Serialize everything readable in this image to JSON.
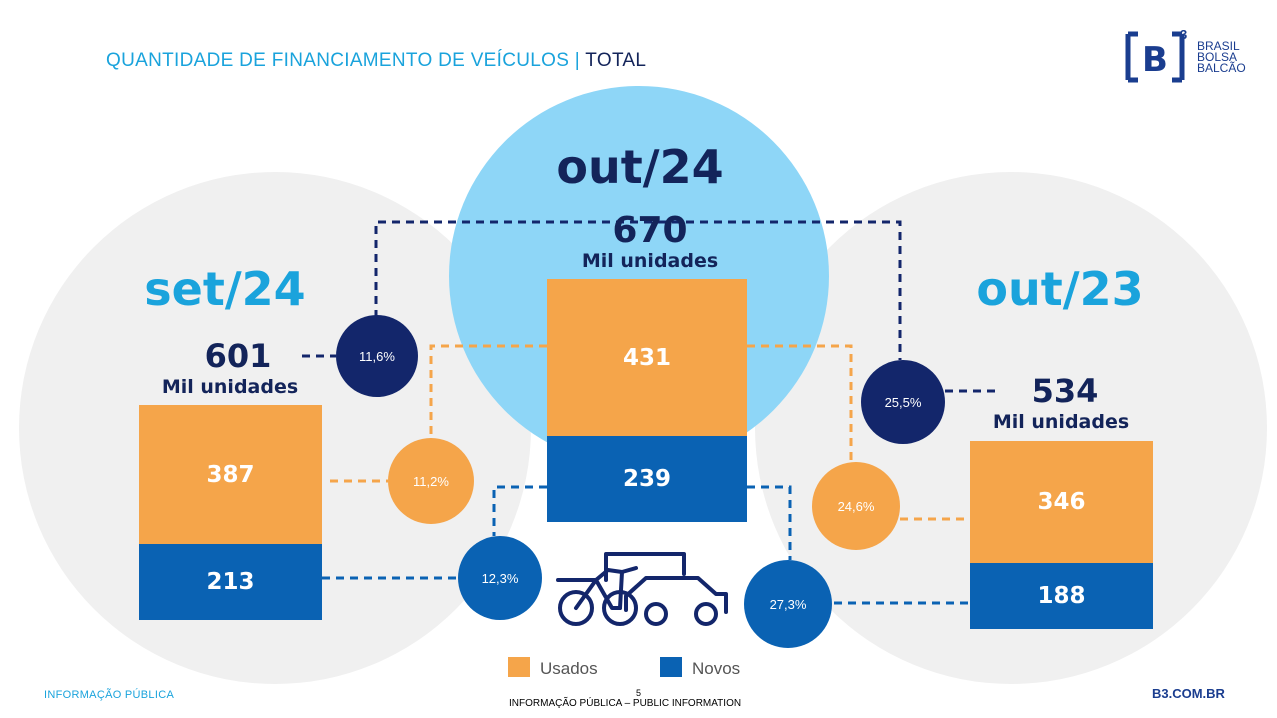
{
  "header": {
    "title_main": "QUANTIDADE DE FINANCIAMENTO DE VEÍCULOS",
    "title_sep": "|",
    "title_total": "TOTAL"
  },
  "logo": {
    "mark": "[B]",
    "sup": "3",
    "line1": "BRASIL",
    "line2": "BOLSA",
    "line3": "BALCÃO"
  },
  "left": {
    "period": "set/24",
    "total": "601",
    "unit": "Mil unidades",
    "usados": "387",
    "novos": "213"
  },
  "center": {
    "period": "out/24",
    "total": "670",
    "unit": "Mil unidades",
    "usados": "431",
    "novos": "239"
  },
  "right": {
    "period": "out/23",
    "total": "534",
    "unit": "Mil unidades",
    "usados": "346",
    "novos": "188"
  },
  "variations": {
    "mom_total": "11,6%",
    "mom_usados": "11,2%",
    "mom_novos": "12,3%",
    "yoy_total": "25,5%",
    "yoy_usados": "24,6%",
    "yoy_novos": "27,3%"
  },
  "legend": {
    "usados": "Usados",
    "novos": "Novos"
  },
  "colors": {
    "usados": "#f5a54a",
    "novos": "#0a62b3",
    "dark": "#13266b",
    "light_blue": "#8ed6f7",
    "accent": "#1aa3dc"
  },
  "icons": [
    "vehicles-icon"
  ],
  "footer": {
    "left": "INFORMAÇÃO PÚBLICA",
    "page": "5",
    "center": "INFORMAÇÃO PÚBLICA – PUBLIC INFORMATION",
    "right": "B3.COM.BR"
  }
}
